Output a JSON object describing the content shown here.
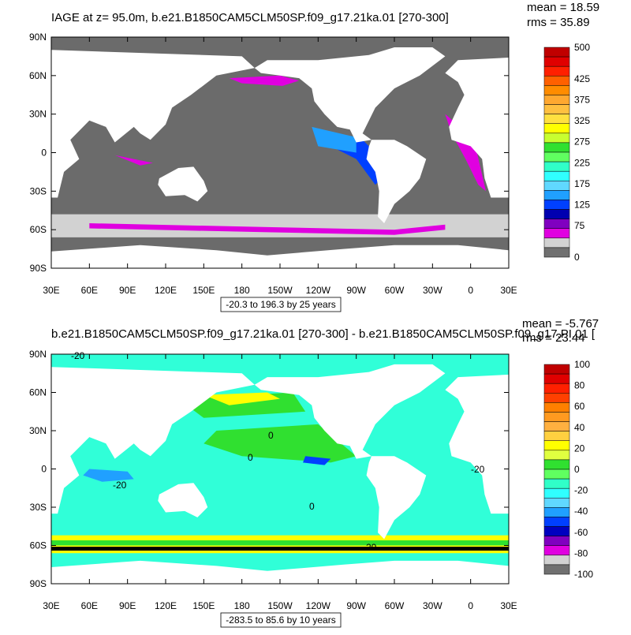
{
  "panels": [
    {
      "title": "IAGE at z=  95.0m, b.e21.B1850CAM5CLM50SP.f09_g17.21ka.01 [270-300]",
      "mean": "mean = 18.59",
      "rms": "rms = 35.89",
      "lat_labels": [
        "90N",
        "60N",
        "30N",
        "0",
        "30S",
        "60S",
        "90S"
      ],
      "lon_labels": [
        "30E",
        "60E",
        "90E",
        "120E",
        "150E",
        "180",
        "150W",
        "120W",
        "90W",
        "60W",
        "30W",
        "0",
        "30E"
      ],
      "range_label": "-20.3 to 196.3 by 25 years",
      "colorbar": {
        "lim": [
          0,
          500
        ],
        "labels": [
          500,
          425,
          375,
          325,
          275,
          225,
          175,
          125,
          75,
          0
        ],
        "colors": [
          "#c00000",
          "#e00000",
          "#ff2000",
          "#ff6000",
          "#ff8c00",
          "#ffa830",
          "#ffc040",
          "#ffe040",
          "#ffff00",
          "#c8ff30",
          "#30e030",
          "#60ff60",
          "#30ffc8",
          "#30ffff",
          "#60d8ff",
          "#20a0ff",
          "#0040ff",
          "#0000b0",
          "#8000c0",
          "#e000e0",
          "#d2d2d2",
          "#707070"
        ]
      }
    },
    {
      "title": "b.e21.B1850CAM5CLM50SP.f09_g17.21ka.01 [270-300] - b.e21.B1850CAM5CLM50SP.f09_g17.PI.01 [",
      "mean": "mean = -5.767",
      "rms": "rms = 23.44",
      "lat_labels": [
        "90N",
        "60N",
        "30N",
        "0",
        "30S",
        "60S",
        "90S"
      ],
      "lon_labels": [
        "30E",
        "60E",
        "90E",
        "120E",
        "150E",
        "180",
        "150W",
        "120W",
        "90W",
        "60W",
        "30W",
        "0",
        "30E"
      ],
      "range_label": "-283.5 to 85.6 by 10 years",
      "colorbar": {
        "lim": [
          -100,
          100
        ],
        "labels": [
          100,
          80,
          60,
          40,
          20,
          0,
          -20,
          -40,
          -60,
          -80,
          -100
        ],
        "colors": [
          "#c00000",
          "#e00000",
          "#ff2000",
          "#ff4000",
          "#ff8000",
          "#ff9a20",
          "#ffb040",
          "#ffd040",
          "#ffff00",
          "#e0ff40",
          "#30e030",
          "#60ff60",
          "#30ffc8",
          "#30ffff",
          "#60d8ff",
          "#20a0ff",
          "#0040ff",
          "#0000c0",
          "#8000c0",
          "#e000e0",
          "#d2d2d2",
          "#707070"
        ]
      },
      "contour_labels": [
        "-20",
        "0",
        "0",
        "-20",
        "0",
        "-20",
        "20"
      ]
    }
  ]
}
